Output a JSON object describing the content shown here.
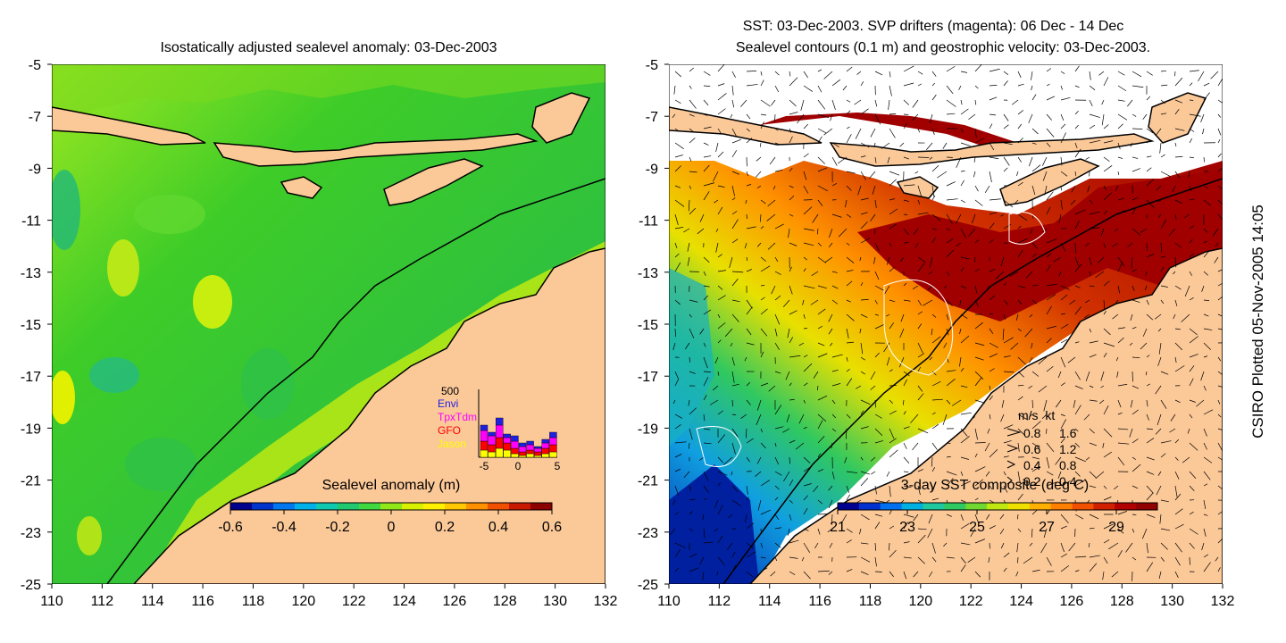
{
  "left_map": {
    "title": "Isostatically adjusted sealevel anomaly: 03-Dec-2003",
    "colorbar": {
      "label": "Sealevel anomaly (m)",
      "ticks": [
        "-0.6",
        "-0.4",
        "-0.2",
        "0",
        "0.2",
        "0.4",
        "0.6"
      ],
      "colors": [
        "#00008c",
        "#0033cc",
        "#0077ee",
        "#00b0e8",
        "#10c8b0",
        "#20c870",
        "#40d840",
        "#90e818",
        "#d8f000",
        "#fff000",
        "#ffc800",
        "#ff9000",
        "#f05000",
        "#c81800",
        "#8c0000"
      ]
    },
    "inset": {
      "ymax_label": "500",
      "legend": [
        "Envi",
        "TpxTdm",
        "GFO",
        "Jason"
      ],
      "legend_colors": [
        "#2020e0",
        "#ff00ff",
        "#ff0000",
        "#ffff00"
      ],
      "x_ticks": [
        "-5",
        "0",
        "5"
      ]
    }
  },
  "right_map": {
    "title_line1": "SST: 03-Dec-2003. SVP drifters (magenta): 06 Dec - 14 Dec",
    "title_line2": "Sealevel contours (0.1 m) and geostrophic velocity: 03-Dec-2003.",
    "colorbar": {
      "label": "3-day SST composite (deg C)",
      "ticks": [
        "21",
        "23",
        "25",
        "27",
        "29"
      ],
      "colors": [
        "#000090",
        "#0030d0",
        "#0070f0",
        "#00b0e0",
        "#20c8a0",
        "#30c860",
        "#70d830",
        "#c0e810",
        "#f0e000",
        "#ffb000",
        "#ff8000",
        "#f05000",
        "#d02000",
        "#b00000",
        "#900000"
      ]
    },
    "velocity_legend": {
      "header": "m/s  kt",
      "rows": [
        {
          "ms": "0.8",
          "kt": "1.6"
        },
        {
          "ms": "0.6",
          "kt": "1.2"
        },
        {
          "ms": "0.4",
          "kt": "0.8"
        },
        {
          "ms": "0.2",
          "kt": "0.4"
        }
      ]
    }
  },
  "axes": {
    "lon_labels": [
      "110",
      "112",
      "114",
      "116",
      "118",
      "120",
      "122",
      "124",
      "126",
      "128",
      "130",
      "132"
    ],
    "lat_labels": [
      "-5",
      "-7",
      "-9",
      "-11",
      "-13",
      "-15",
      "-17",
      "-19",
      "-21",
      "-23",
      "-25"
    ]
  },
  "credit": "CSIRO Plotted 05-Nov-2005 14:05",
  "colors": {
    "land": "#fbc898",
    "ocean_green": "#3ecc28",
    "ocean_light": "#6add30",
    "coast": "#000000"
  }
}
